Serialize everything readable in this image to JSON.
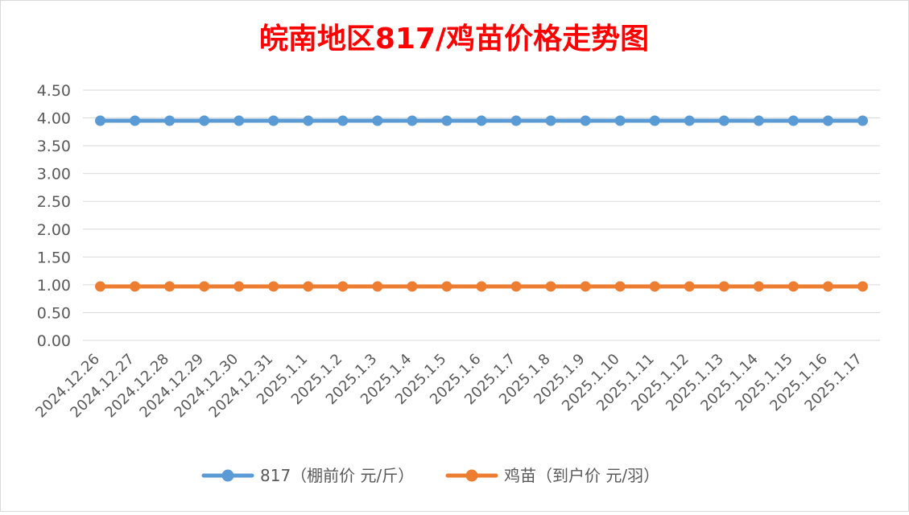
{
  "chart_data": {
    "type": "line",
    "title": "皖南地区817/鸡苗价格走势图",
    "title_color": "#FF0000",
    "categories": [
      "2024.12.26",
      "2024.12.27",
      "2024.12.28",
      "2024.12.29",
      "2024.12.30",
      "2024.12.31",
      "2025.1.1",
      "2025.1.2",
      "2025.1.3",
      "2025.1.4",
      "2025.1.5",
      "2025.1.6",
      "2025.1.7",
      "2025.1.8",
      "2025.1.9",
      "2025.1.10",
      "2025.1.11",
      "2025.1.12",
      "2025.1.13",
      "2025.1.14",
      "2025.1.15",
      "2025.1.16",
      "2025.1.17"
    ],
    "series": [
      {
        "name": "817（棚前价 元/斤）",
        "color": "#5B9BD5",
        "values": [
          3.95,
          3.95,
          3.95,
          3.95,
          3.95,
          3.95,
          3.95,
          3.95,
          3.95,
          3.95,
          3.95,
          3.95,
          3.95,
          3.95,
          3.95,
          3.95,
          3.95,
          3.95,
          3.95,
          3.95,
          3.95,
          3.95,
          3.95
        ]
      },
      {
        "name": "鸡苗（到户价 元/羽）",
        "color": "#ED7D31",
        "values": [
          0.97,
          0.97,
          0.97,
          0.97,
          0.97,
          0.97,
          0.97,
          0.97,
          0.97,
          0.97,
          0.97,
          0.97,
          0.97,
          0.97,
          0.97,
          0.97,
          0.97,
          0.97,
          0.97,
          0.97,
          0.97,
          0.97,
          0.97
        ]
      }
    ],
    "y_ticks": [
      "0.00",
      "0.50",
      "1.00",
      "1.50",
      "2.00",
      "2.50",
      "3.00",
      "3.50",
      "4.00",
      "4.50"
    ],
    "ylim": [
      0,
      4.5
    ],
    "grid": true,
    "legend_position": "bottom"
  }
}
